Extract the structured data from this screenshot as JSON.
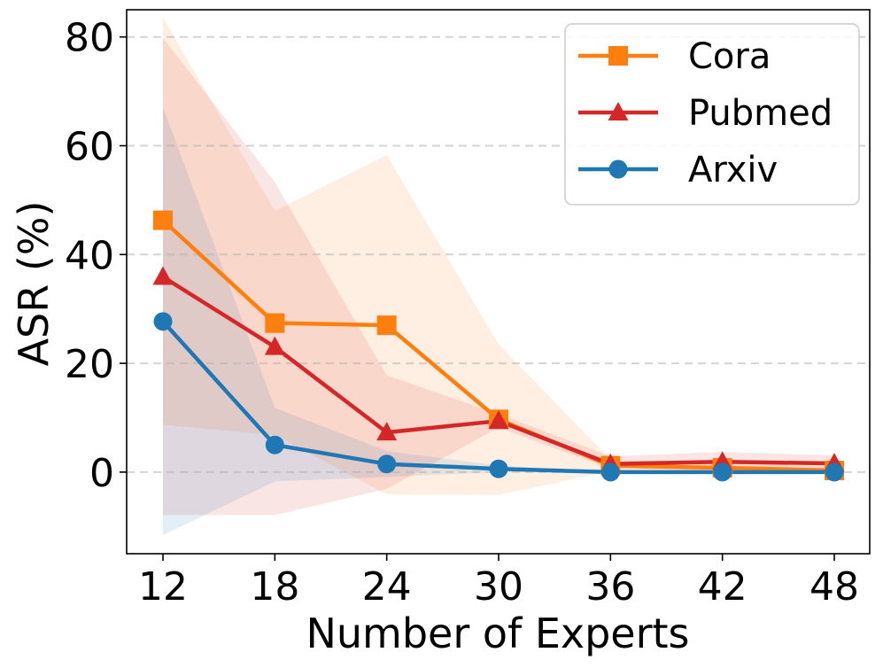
{
  "chart_data": {
    "type": "line",
    "xlabel": "Number of Experts",
    "ylabel": "ASR (%)",
    "x": [
      12,
      18,
      24,
      30,
      36,
      42,
      48
    ],
    "ylim": [
      -15,
      85
    ],
    "yticks": [
      0,
      20,
      40,
      60,
      80
    ],
    "grid": "y-dashed",
    "legend": "top-right",
    "series": [
      {
        "name": "Cora",
        "color": "#ff7f0e",
        "marker": "square",
        "values": [
          46.3,
          27.4,
          27.0,
          9.7,
          1.2,
          0.8,
          0.3
        ],
        "lower": [
          8.7,
          6.8,
          -4.1,
          -4.2,
          0.2,
          0.0,
          0.0
        ],
        "upper": [
          83.6,
          48.0,
          58.3,
          23.5,
          2.3,
          1.8,
          1.0
        ]
      },
      {
        "name": "Pubmed",
        "color": "#d62728",
        "marker": "triangle",
        "values": [
          35.9,
          23.0,
          7.3,
          9.4,
          1.5,
          1.9,
          1.6
        ],
        "lower": [
          -7.9,
          -7.9,
          -3.1,
          8.2,
          0.6,
          0.3,
          0.0
        ],
        "upper": [
          79.8,
          53.3,
          17.8,
          10.7,
          2.9,
          3.7,
          3.1
        ]
      },
      {
        "name": "Arxiv",
        "color": "#1f77b4",
        "marker": "circle",
        "values": [
          27.7,
          5.0,
          1.5,
          0.6,
          0.0,
          0.0,
          0.0
        ],
        "lower": [
          -11.6,
          -1.7,
          -0.9,
          0.0,
          0.0,
          0.0,
          0.0
        ],
        "upper": [
          67.1,
          11.8,
          3.9,
          1.2,
          0.0,
          0.0,
          0.0
        ]
      }
    ]
  }
}
